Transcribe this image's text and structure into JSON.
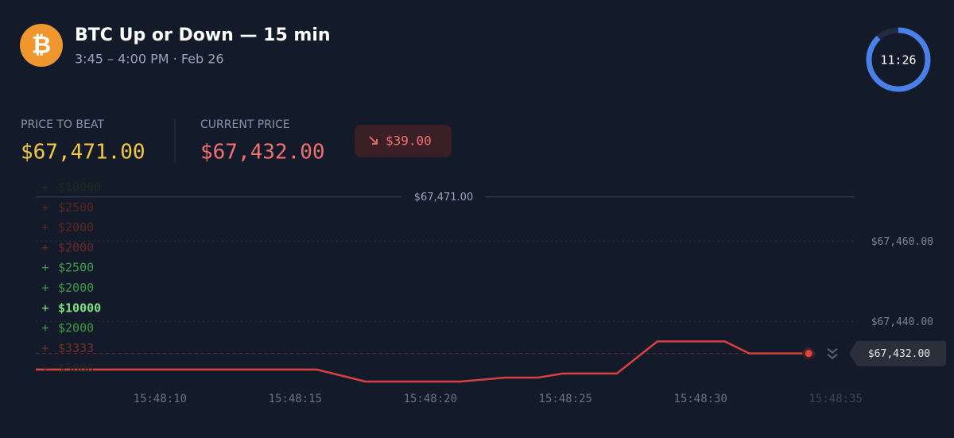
{
  "header": {
    "logo": "₿",
    "title": "BTC Up or Down — 15 min",
    "subtitle": "3:45 – 4:00 PM · Feb 26",
    "timer": "11:26"
  },
  "prices": {
    "price_to_beat_label": "PRICE TO BEAT",
    "price_to_beat": "$67,471.00",
    "current_price_label": "CURRENT PRICE",
    "current_price": "$67,432.00",
    "change": "$39.00"
  },
  "trades": [
    {
      "sign": "+",
      "amount": "$10000",
      "color": "#1d2b1f"
    },
    {
      "sign": "+",
      "amount": "$2500",
      "color": "#5a2624"
    },
    {
      "sign": "+",
      "amount": "$2000",
      "color": "#5e2725"
    },
    {
      "sign": "+",
      "amount": "$2000",
      "color": "#6a2a27"
    },
    {
      "sign": "+",
      "amount": "$2500",
      "color": "#3f9a46"
    },
    {
      "sign": "+",
      "amount": "$2000",
      "color": "#3f9a46"
    },
    {
      "sign": "+",
      "amount": "$10000",
      "color": "#7fe07f"
    },
    {
      "sign": "+",
      "amount": "$2000",
      "color": "#3f9a46"
    },
    {
      "sign": "+",
      "amount": "$3333",
      "color": "#7a2e2b"
    },
    {
      "sign": "+",
      "amount": "$5000",
      "color": "#1d2b1f"
    }
  ],
  "chart_data": {
    "type": "line",
    "color": "#d94040",
    "x": [
      5.4,
      15.8,
      17.6,
      21.1,
      22.8,
      24.0,
      24.9,
      26.9,
      28.4,
      30.9,
      31.8,
      34.0
    ],
    "values": [
      67428,
      67428,
      67425,
      67425,
      67426,
      67426,
      67427,
      67427,
      67435,
      67435,
      67432,
      67432
    ],
    "xlim": [
      5.4,
      35.7
    ],
    "xticks": [
      {
        "value": 10,
        "label": "15:48:10"
      },
      {
        "value": 15,
        "label": "15:48:15"
      },
      {
        "value": 20,
        "label": "15:48:20"
      },
      {
        "value": 25,
        "label": "15:48:25"
      },
      {
        "value": 30,
        "label": "15:48:30"
      },
      {
        "value": 35,
        "label": "15:48:35"
      }
    ],
    "ylim": [
      67425,
      67475
    ],
    "yticks": [
      {
        "value": 67460,
        "label": "$67,460.00"
      },
      {
        "value": 67440,
        "label": "$67,440.00"
      }
    ],
    "grid": true,
    "price_to_beat_line": {
      "value": 67471,
      "label": "$67,471.00"
    },
    "current_price_line": {
      "value": 67432,
      "label": "$67,432.00"
    }
  }
}
